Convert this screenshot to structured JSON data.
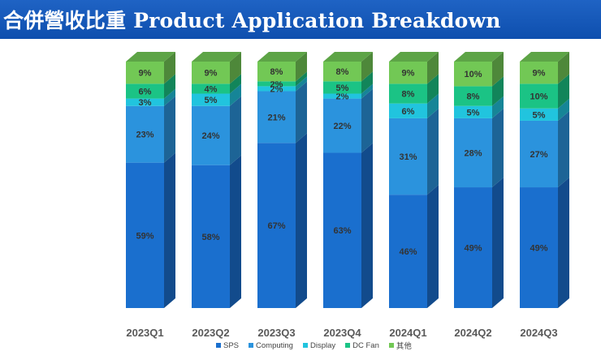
{
  "title": "合併營收比重 Product Application Breakdown",
  "chart_data": {
    "type": "bar",
    "stacked": true,
    "percent": true,
    "categories": [
      "2023Q1",
      "2023Q2",
      "2023Q3",
      "2023Q4",
      "2024Q1",
      "2024Q2",
      "2024Q3"
    ],
    "series": [
      {
        "name": "SPS",
        "color": "#1a6fce",
        "values": [
          59,
          58,
          67,
          63,
          46,
          49,
          49
        ]
      },
      {
        "name": "Computing",
        "color": "#2b93dd",
        "values": [
          23,
          24,
          21,
          22,
          31,
          28,
          27
        ]
      },
      {
        "name": "Display",
        "color": "#21c4de",
        "values": [
          3,
          5,
          2,
          2,
          6,
          5,
          5
        ]
      },
      {
        "name": "DC Fan",
        "color": "#1bc385",
        "values": [
          6,
          4,
          2,
          5,
          8,
          8,
          10
        ]
      },
      {
        "name": "其他",
        "color": "#72c855",
        "values": [
          9,
          9,
          8,
          8,
          9,
          10,
          9
        ]
      }
    ],
    "labels": [
      [
        "59%",
        "23%",
        "3%",
        "6%",
        "9%"
      ],
      [
        "58%",
        "24%",
        "5%",
        "4%",
        "9%"
      ],
      [
        "67%",
        "21%",
        "2%",
        "2%",
        "8%"
      ],
      [
        "63%",
        "22%",
        "2%",
        "5%",
        "8%"
      ],
      [
        "46%",
        "31%",
        "6%",
        "8%",
        "9%"
      ],
      [
        "49%",
        "28%",
        "5%",
        "8%",
        "10%"
      ],
      [
        "49%",
        "27%",
        "5%",
        "10%",
        "9%"
      ]
    ],
    "legend_position": "bottom"
  }
}
